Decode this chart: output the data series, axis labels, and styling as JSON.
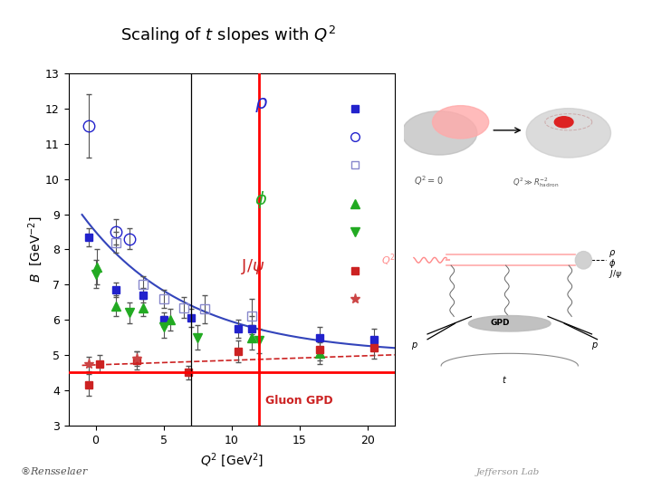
{
  "title": "Scaling of $t$ slopes with $Q^2$",
  "xlabel": "$Q^2$ [GeV$^2$]",
  "ylabel": "$B$  [GeV$^{-2}$]",
  "xlim": [
    -2,
    22
  ],
  "ylim": [
    3,
    13
  ],
  "yticks": [
    3,
    4,
    5,
    6,
    7,
    8,
    9,
    10,
    11,
    12,
    13
  ],
  "xticks": [
    0,
    5,
    10,
    15,
    20
  ],
  "bg_color": "#ffffff",
  "rho_filled_blue": {
    "x": [
      -0.5,
      1.5,
      3.5,
      5.0,
      7.0,
      10.5,
      11.5,
      16.5,
      20.5
    ],
    "y": [
      8.35,
      6.85,
      6.7,
      6.0,
      6.05,
      5.75,
      5.75,
      5.5,
      5.45
    ],
    "yerr": [
      0.25,
      0.2,
      0.2,
      0.2,
      0.25,
      0.25,
      0.35,
      0.3,
      0.3
    ],
    "color": "#2222cc",
    "marker": "s",
    "filled": true,
    "ms": 6
  },
  "rho_open_circle_blue": {
    "x": [
      -0.5,
      1.5,
      2.5
    ],
    "y": [
      11.5,
      8.5,
      8.3
    ],
    "yerr": [
      0.9,
      0.35,
      0.3
    ],
    "color": "#2222cc",
    "marker": "o",
    "filled": false,
    "ms": 9
  },
  "rho_open_square_blue": {
    "x": [
      1.5,
      3.5,
      5.0,
      6.5,
      8.0,
      11.5
    ],
    "y": [
      8.2,
      7.0,
      6.6,
      6.35,
      6.3,
      6.1
    ],
    "yerr": [
      0.3,
      0.25,
      0.25,
      0.3,
      0.4,
      0.5
    ],
    "color": "#8888cc",
    "marker": "s",
    "filled": false,
    "ms": 7
  },
  "phi_up_triangle_green": {
    "x": [
      0.1,
      1.5,
      3.5,
      5.5,
      11.5,
      16.5
    ],
    "y": [
      7.5,
      6.4,
      6.35,
      6.0,
      5.5,
      5.05
    ],
    "yerr": [
      0.5,
      0.3,
      0.25,
      0.3,
      0.35,
      0.3
    ],
    "color": "#22aa22",
    "marker": "^",
    "filled": true,
    "ms": 7
  },
  "phi_down_triangle_green": {
    "x": [
      0.0,
      2.5,
      5.0,
      7.5,
      12.0
    ],
    "y": [
      7.3,
      6.2,
      5.8,
      5.5,
      5.4
    ],
    "yerr": [
      0.4,
      0.3,
      0.3,
      0.35,
      0.35
    ],
    "color": "#22aa22",
    "marker": "v",
    "filled": true,
    "ms": 7
  },
  "jpsi_filled_red": {
    "x": [
      -0.5,
      0.3,
      3.0,
      6.8,
      10.5,
      16.5,
      20.5
    ],
    "y": [
      4.15,
      4.75,
      4.85,
      4.5,
      5.1,
      5.15,
      5.2
    ],
    "yerr": [
      0.3,
      0.25,
      0.25,
      0.2,
      0.3,
      0.3,
      0.3
    ],
    "color": "#cc2222",
    "marker": "s",
    "filled": true,
    "ms": 6
  },
  "jpsi_star_red": {
    "x": [
      -0.5,
      3.0
    ],
    "y": [
      4.75,
      4.9
    ],
    "yerr": [
      0.2,
      0.2
    ],
    "color": "#cc4444",
    "marker": "*",
    "filled": true,
    "ms": 8
  },
  "fit_blue_color": "#3344bb",
  "fit_red_color": "#cc2222",
  "vline_red_x": 12.0,
  "vline_black_x": 7.0,
  "hline_red_y": 4.5,
  "gluon_gpd_x": 15.0,
  "gluon_gpd_y": 3.7,
  "annotation_color": "#cc2222"
}
